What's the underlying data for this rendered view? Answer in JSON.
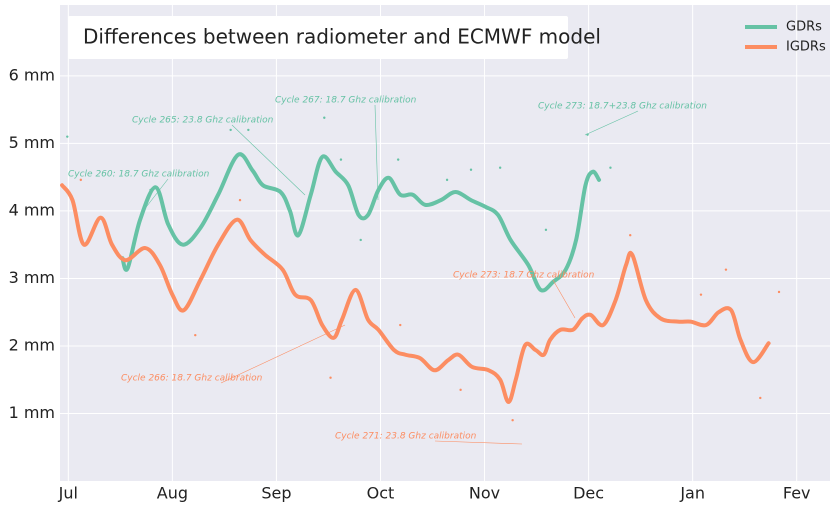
{
  "chart_data": {
    "type": "line",
    "title": "Differences between radiometer and ECMWF model",
    "xlim": [
      -0.08,
      7.32
    ],
    "xticks": [
      {
        "value": 0,
        "label": "Jul"
      },
      {
        "value": 1,
        "label": "Aug"
      },
      {
        "value": 2,
        "label": "Sep"
      },
      {
        "value": 3,
        "label": "Oct"
      },
      {
        "value": 4,
        "label": "Nov"
      },
      {
        "value": 5,
        "label": "Dec"
      },
      {
        "value": 6,
        "label": "Jan"
      },
      {
        "value": 7,
        "label": "Fev"
      }
    ],
    "ylim": [
      0,
      7.05
    ],
    "yticks": [
      {
        "value": 1,
        "label": "1 mm"
      },
      {
        "value": 2,
        "label": "2 mm"
      },
      {
        "value": 3,
        "label": "3 mm"
      },
      {
        "value": 4,
        "label": "4 mm"
      },
      {
        "value": 5,
        "label": "5 mm"
      },
      {
        "value": 6,
        "label": "6 mm"
      }
    ],
    "grid": true,
    "legend": "upper right",
    "series": [
      {
        "name": "GDRs",
        "color": "#66c2a5",
        "x": [
          0.52,
          0.57,
          0.69,
          0.84,
          0.96,
          1.1,
          1.27,
          1.44,
          1.63,
          1.77,
          1.87,
          2.04,
          2.13,
          2.21,
          2.33,
          2.44,
          2.57,
          2.69,
          2.79,
          2.88,
          2.98,
          3.08,
          3.19,
          3.31,
          3.43,
          3.58,
          3.72,
          3.87,
          4.01,
          4.13,
          4.25,
          4.42,
          4.54,
          4.66,
          4.78,
          4.88,
          4.97,
          5.04,
          5.1
        ],
        "values": [
          3.3,
          3.15,
          3.87,
          4.35,
          3.8,
          3.5,
          3.75,
          4.24,
          4.83,
          4.6,
          4.38,
          4.28,
          4.0,
          3.64,
          4.24,
          4.8,
          4.58,
          4.38,
          3.94,
          3.94,
          4.31,
          4.49,
          4.24,
          4.24,
          4.09,
          4.16,
          4.28,
          4.16,
          4.06,
          3.94,
          3.57,
          3.2,
          2.83,
          2.95,
          3.13,
          3.57,
          4.38,
          4.58,
          4.46
        ],
        "scatter_x": [
          -0.01,
          0.79,
          1.56,
          1.73,
          2.46,
          2.62,
          3.17,
          3.64,
          3.87,
          4.15,
          4.59,
          4.99,
          5.21,
          2.81
        ],
        "scatter_y": [
          5.1,
          4.31,
          5.2,
          5.2,
          5.38,
          4.76,
          4.76,
          4.46,
          4.61,
          4.64,
          3.72,
          5.13,
          4.64,
          3.57
        ]
      },
      {
        "name": "IGDRs",
        "color": "#fc8d62",
        "x": [
          -0.06,
          0.04,
          0.15,
          0.31,
          0.42,
          0.55,
          0.74,
          0.88,
          1.0,
          1.11,
          1.27,
          1.44,
          1.62,
          1.75,
          1.89,
          2.06,
          2.18,
          2.33,
          2.44,
          2.55,
          2.63,
          2.76,
          2.88,
          2.98,
          3.13,
          3.24,
          3.38,
          3.52,
          3.65,
          3.75,
          3.88,
          4.04,
          4.15,
          4.23,
          4.3,
          4.39,
          4.49,
          4.57,
          4.63,
          4.73,
          4.85,
          4.94,
          5.02,
          5.14,
          5.26,
          5.36,
          5.42,
          5.55,
          5.69,
          5.86,
          5.98,
          6.13,
          6.25,
          6.37,
          6.46,
          6.58,
          6.73
        ],
        "values": [
          4.38,
          4.16,
          3.5,
          3.9,
          3.5,
          3.27,
          3.45,
          3.2,
          2.76,
          2.53,
          2.98,
          3.5,
          3.87,
          3.57,
          3.35,
          3.13,
          2.76,
          2.68,
          2.31,
          2.12,
          2.39,
          2.83,
          2.39,
          2.24,
          1.94,
          1.87,
          1.82,
          1.64,
          1.79,
          1.87,
          1.69,
          1.64,
          1.5,
          1.17,
          1.5,
          2.01,
          1.94,
          1.87,
          2.09,
          2.24,
          2.24,
          2.41,
          2.46,
          2.31,
          2.68,
          3.2,
          3.35,
          2.68,
          2.41,
          2.36,
          2.36,
          2.31,
          2.5,
          2.53,
          2.09,
          1.76,
          2.04
        ],
        "scatter_x": [
          0.12,
          0.4,
          1.22,
          1.65,
          2.52,
          3.19,
          3.77,
          4.2,
          4.27,
          5.4,
          6.08,
          6.32,
          6.65,
          6.83
        ],
        "scatter_y": [
          4.46,
          3.57,
          2.16,
          4.16,
          1.53,
          2.31,
          1.35,
          1.27,
          0.9,
          3.64,
          2.76,
          3.13,
          1.23,
          2.8
        ]
      }
    ],
    "annotations": [
      {
        "text": "Cycle 260: 18.7 Ghz calibration",
        "series": 0
      },
      {
        "text": "Cycle 265: 23.8 Ghz calibration",
        "series": 0
      },
      {
        "text": "Cycle 267: 18.7 Ghz calibration",
        "series": 0
      },
      {
        "text": "Cycle 273: 18.7+23.8 Ghz calibration",
        "series": 0
      },
      {
        "text": "Cycle 273: 18.7 Ghz calibration",
        "series": 1
      },
      {
        "text": "Cycle 266: 18.7 Ghz calibration",
        "series": 1
      },
      {
        "text": "Cycle 271: 23.8 Ghz calibration",
        "series": 1
      }
    ]
  }
}
